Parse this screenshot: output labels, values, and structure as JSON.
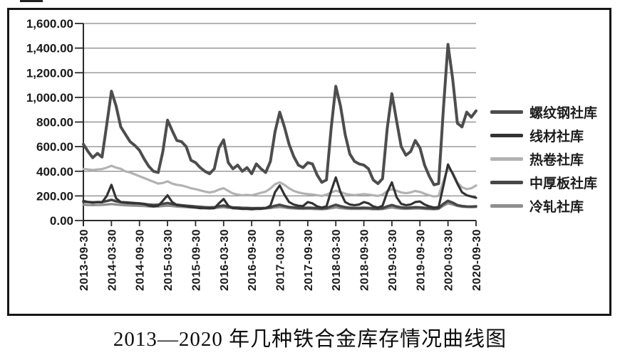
{
  "caption": "2013—2020 年几种铁合金库存情况曲线图",
  "chart_data": {
    "type": "line",
    "title": "2013—2020 年几种铁合金库存情况曲线图",
    "grid": true,
    "legend_position": "right",
    "y_axis": {
      "range": [
        0,
        1600
      ],
      "tick_values": [
        0,
        200,
        400,
        600,
        800,
        1000,
        1200,
        1400,
        1600
      ],
      "tick_labels": [
        "0.00",
        "200.00",
        "400.00",
        "600.00",
        "800.00",
        "1,000.00",
        "1,200.00",
        "1,400.00",
        "1,600.00"
      ]
    },
    "x_axis": {
      "tick_labels": [
        "2013-09-30",
        "2014-03-30",
        "2014-09-30",
        "2015-03-30",
        "2015-09-30",
        "2016-03-30",
        "2016-09-30",
        "2017-03-30",
        "2017-09-30",
        "2018-03-30",
        "2018-09-30",
        "2019-03-30",
        "2019-09-30",
        "2020-03-30",
        "2020-09-30"
      ],
      "note": "monthly samples from 2013-09 to 2020-09"
    },
    "series": [
      {
        "name": "螺纹钢社库",
        "color": "#4d4d4d",
        "width": 4,
        "values": [
          620,
          560,
          510,
          545,
          515,
          780,
          1050,
          930,
          760,
          700,
          640,
          610,
          570,
          500,
          440,
          400,
          390,
          560,
          815,
          730,
          650,
          640,
          600,
          490,
          470,
          430,
          400,
          380,
          420,
          590,
          655,
          470,
          420,
          450,
          400,
          430,
          380,
          460,
          420,
          390,
          480,
          720,
          880,
          760,
          620,
          520,
          450,
          430,
          470,
          460,
          370,
          310,
          330,
          750,
          1090,
          930,
          700,
          540,
          480,
          460,
          450,
          420,
          330,
          300,
          340,
          750,
          1030,
          810,
          600,
          530,
          560,
          650,
          590,
          450,
          360,
          290,
          300,
          900,
          1430,
          1150,
          790,
          760,
          880,
          840,
          890
        ]
      },
      {
        "name": "线材社库",
        "color": "#333333",
        "width": 3.2,
        "values": [
          160,
          150,
          145,
          150,
          148,
          200,
          290,
          180,
          150,
          148,
          145,
          142,
          140,
          135,
          120,
          115,
          120,
          160,
          205,
          150,
          125,
          120,
          115,
          110,
          105,
          100,
          100,
          98,
          100,
          140,
          175,
          120,
          100,
          98,
          95,
          95,
          92,
          95,
          95,
          100,
          120,
          230,
          285,
          210,
          150,
          130,
          120,
          118,
          150,
          140,
          115,
          105,
          115,
          240,
          350,
          230,
          150,
          130,
          125,
          130,
          150,
          140,
          115,
          105,
          120,
          230,
          310,
          190,
          135,
          125,
          130,
          150,
          155,
          130,
          115,
          105,
          110,
          280,
          455,
          380,
          300,
          230,
          205,
          195,
          185
        ]
      },
      {
        "name": "热卷社库",
        "color": "#b2b2b2",
        "width": 3.2,
        "values": [
          420,
          415,
          410,
          415,
          418,
          430,
          445,
          430,
          420,
          400,
          390,
          375,
          360,
          345,
          330,
          315,
          300,
          305,
          318,
          300,
          290,
          285,
          275,
          262,
          255,
          245,
          235,
          228,
          235,
          252,
          262,
          240,
          220,
          210,
          205,
          208,
          205,
          215,
          225,
          235,
          260,
          295,
          310,
          290,
          262,
          240,
          228,
          220,
          215,
          212,
          205,
          200,
          210,
          228,
          242,
          232,
          218,
          210,
          206,
          210,
          215,
          210,
          205,
          200,
          210,
          240,
          255,
          242,
          228,
          222,
          228,
          240,
          232,
          218,
          205,
          195,
          200,
          320,
          430,
          390,
          310,
          270,
          255,
          262,
          285
        ]
      },
      {
        "name": "中厚板社库",
        "color": "#474747",
        "width": 3.6,
        "values": [
          152,
          150,
          148,
          149,
          150,
          158,
          168,
          156,
          148,
          145,
          142,
          140,
          138,
          134,
          130,
          127,
          128,
          136,
          142,
          134,
          128,
          124,
          120,
          117,
          114,
          111,
          108,
          106,
          108,
          116,
          122,
          112,
          107,
          105,
          103,
          102,
          100,
          101,
          101,
          102,
          108,
          120,
          128,
          118,
          110,
          106,
          103,
          102,
          104,
          103,
          100,
          98,
          101,
          115,
          128,
          116,
          108,
          104,
          102,
          102,
          104,
          102,
          99,
          97,
          100,
          115,
          126,
          114,
          106,
          103,
          105,
          108,
          107,
          103,
          100,
          97,
          100,
          135,
          160,
          145,
          125,
          117,
          114,
          113,
          115
        ]
      },
      {
        "name": "冷轧社库",
        "color": "#8e8e8e",
        "width": 3.2,
        "values": [
          128,
          126,
          125,
          126,
          127,
          130,
          134,
          130,
          126,
          124,
          122,
          120,
          119,
          117,
          115,
          113,
          114,
          118,
          121,
          117,
          113,
          111,
          109,
          107,
          105,
          103,
          101,
          100,
          101,
          105,
          108,
          103,
          100,
          99,
          98,
          97,
          96,
          97,
          97,
          98,
          101,
          106,
          110,
          105,
          100,
          98,
          96,
          95,
          96,
          95,
          93,
          92,
          94,
          100,
          106,
          101,
          97,
          95,
          94,
          94,
          95,
          94,
          92,
          91,
          93,
          100,
          106,
          100,
          96,
          95,
          96,
          98,
          97,
          95,
          93,
          92,
          95,
          120,
          140,
          130,
          118,
          112,
          110,
          109,
          110
        ]
      }
    ]
  }
}
